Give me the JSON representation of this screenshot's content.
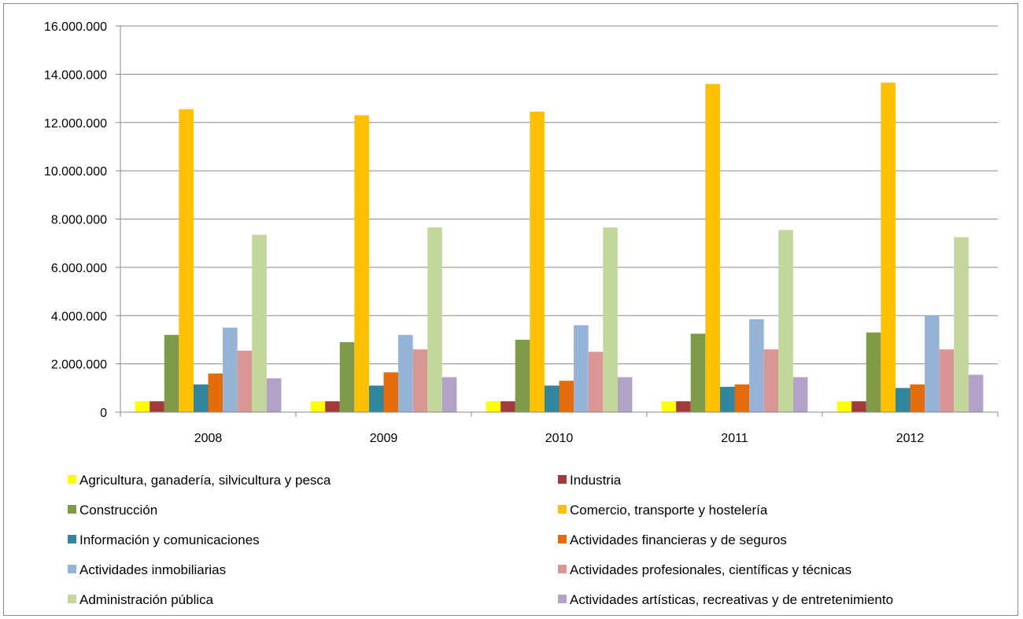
{
  "chart_data": {
    "type": "bar",
    "categories": [
      "2008",
      "2009",
      "2010",
      "2011",
      "2012"
    ],
    "y_tick_labels": [
      "0",
      "2.000.000",
      "4.000.000",
      "6.000.000",
      "8.000.000",
      "10.000.000",
      "12.000.000",
      "14.000.000",
      "16.000.000"
    ],
    "ylim": [
      0,
      16000000
    ],
    "grid": true,
    "legend_position": "bottom",
    "series": [
      {
        "name": "Agricultura, ganadería, silvicultura y pesca",
        "color": "#FFFF00",
        "values": [
          450000,
          450000,
          450000,
          450000,
          450000
        ]
      },
      {
        "name": "Industria",
        "color": "#A33A3A",
        "values": [
          450000,
          450000,
          450000,
          450000,
          450000
        ]
      },
      {
        "name": "Construcción",
        "color": "#7F9A48",
        "values": [
          3200000,
          2900000,
          3000000,
          3250000,
          3300000
        ]
      },
      {
        "name": "Comercio,  transporte y hostelería",
        "color": "#FFC000",
        "values": [
          12550000,
          12300000,
          12450000,
          13600000,
          13650000
        ]
      },
      {
        "name": "Información y comunicaciones",
        "color": "#31859C",
        "values": [
          1150000,
          1100000,
          1100000,
          1050000,
          1000000
        ]
      },
      {
        "name": "Actividades financieras y de seguros",
        "color": "#E46C0A",
        "values": [
          1600000,
          1650000,
          1300000,
          1150000,
          1150000
        ]
      },
      {
        "name": "Actividades inmobiliarias",
        "color": "#95B3D7",
        "values": [
          3500000,
          3200000,
          3600000,
          3850000,
          4000000
        ]
      },
      {
        "name": "Actividades profesionales, científicas y técnicas",
        "color": "#D99694",
        "values": [
          2550000,
          2600000,
          2500000,
          2600000,
          2600000
        ]
      },
      {
        "name": "Administración pública",
        "color": "#C3D69B",
        "values": [
          7350000,
          7650000,
          7650000,
          7550000,
          7250000
        ]
      },
      {
        "name": "Actividades artísticas, recreativas y  de entretenimiento",
        "color": "#B3A2C7",
        "values": [
          1400000,
          1450000,
          1450000,
          1450000,
          1550000
        ]
      }
    ]
  }
}
